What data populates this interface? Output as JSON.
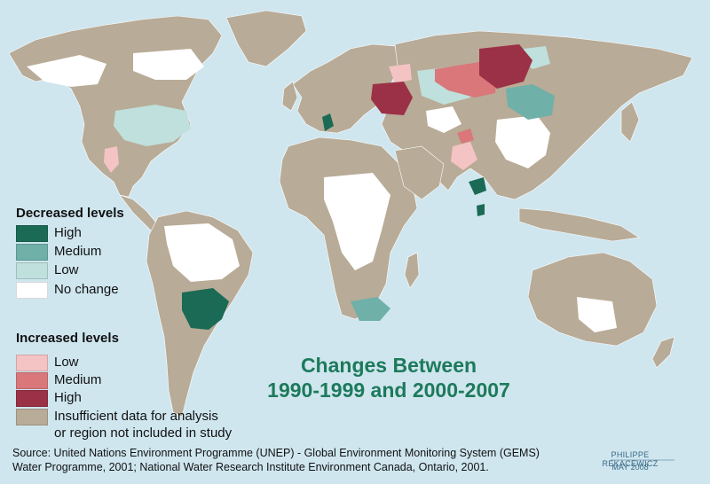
{
  "title": {
    "line1": "Changes Between",
    "line2": "1990-1999 and 2000-2007"
  },
  "legend": {
    "decreased_title": "Decreased levels",
    "decreased_items": [
      {
        "label": "High",
        "color": "#1b6a55"
      },
      {
        "label": "Medium",
        "color": "#6fb0a9"
      },
      {
        "label": "Low",
        "color": "#bfe0dc"
      },
      {
        "label": "No change",
        "color": "#ffffff"
      }
    ],
    "increased_title": "Increased levels",
    "increased_items": [
      {
        "label": "Low",
        "color": "#f4c3c3"
      },
      {
        "label": "Medium",
        "color": "#d9777a"
      },
      {
        "label": "High",
        "color": "#9b3146"
      }
    ],
    "insufficient": {
      "label_line1": "Insufficient data for analysis",
      "label_line2": "or region not included in study",
      "color": "#b8ab97"
    }
  },
  "source": {
    "line1": "Source: United Nations Environment Programme (UNEP) -  Global Environment Monitoring System (GEMS)",
    "line2": "Water Programme, 2001; National Water Research Institute Environment Canada, Ontario, 2001."
  },
  "credit": {
    "author": "PHILIPPE REKACEWICZ",
    "date": "MAY 2008"
  },
  "colors": {
    "ocean": "#cfe6ef",
    "land": "#b8ab97",
    "title": "#1d7a5b"
  }
}
